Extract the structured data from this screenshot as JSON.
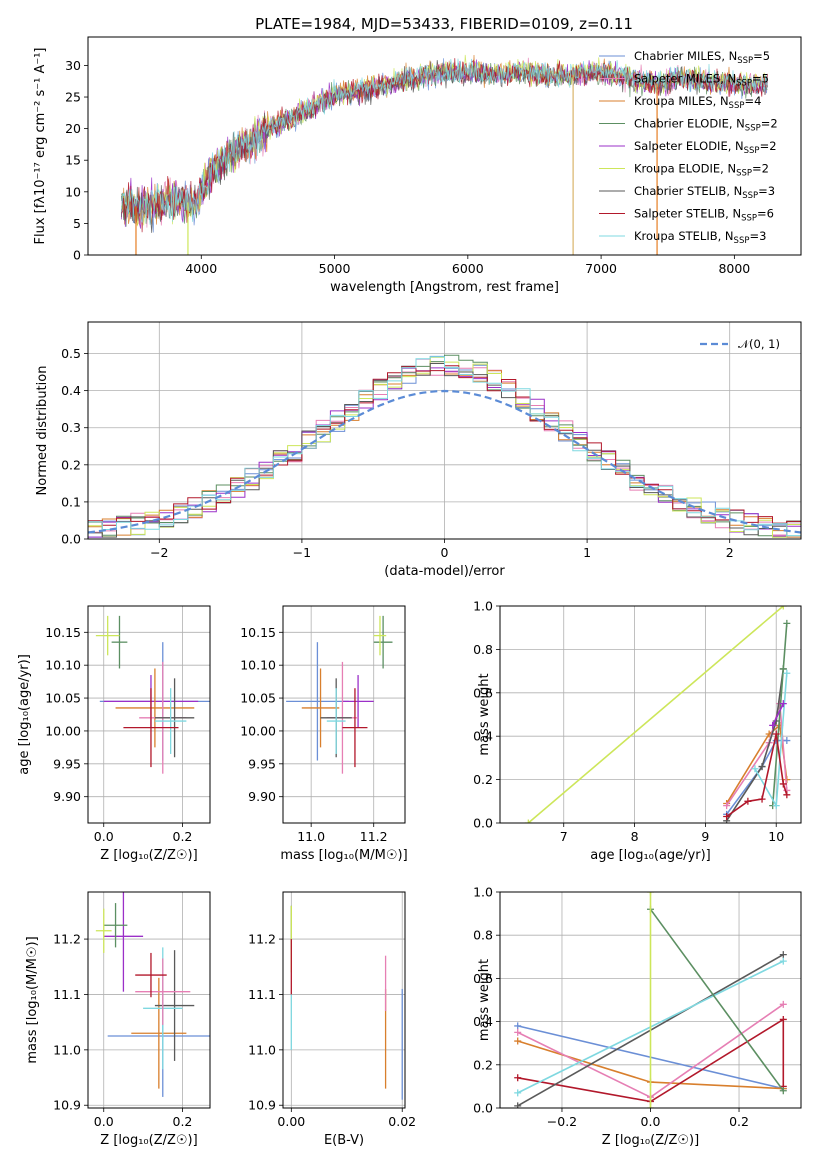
{
  "colors": {
    "c1": "#6b8fd6",
    "c2": "#e67e22",
    "c3": "#d87f2d",
    "c4": "#5c8f62",
    "c5": "#9b30c8",
    "c6": "#cde65a",
    "c7": "#5a5a5a",
    "c8": "#b2182b",
    "c9": "#7fd8e0",
    "pink": "#e67fb4"
  },
  "chart_data": [
    {
      "id": "spectrum",
      "type": "line",
      "title": "PLATE=1984, MJD=53433, FIBERID=0109, z=0.11",
      "xlabel": "wavelength [Angstrom, rest frame]",
      "ylabel": "Flux [fλ10⁻¹⁷ erg cm⁻² s⁻¹ A⁻¹]",
      "xlim": [
        3150,
        8500
      ],
      "ylim": [
        0,
        34.5
      ],
      "xticks": [
        4000,
        5000,
        6000,
        7000,
        8000
      ],
      "yticks": [
        0,
        5,
        10,
        15,
        20,
        25,
        30
      ],
      "legend_position": "top-right",
      "legend": [
        {
          "label": "Chabrier MILES, N",
          "sub": "SSP",
          "tail": "=5",
          "color": "#6b8fd6"
        },
        {
          "label": "Salpeter MILES, N",
          "sub": "SSP",
          "tail": "=5",
          "color": "#e67fb4"
        },
        {
          "label": "Kroupa MILES, N",
          "sub": "SSP",
          "tail": "=4",
          "color": "#d87f2d"
        },
        {
          "label": "Chabrier ELODIE, N",
          "sub": "SSP",
          "tail": "=2",
          "color": "#5c8f62"
        },
        {
          "label": "Salpeter ELODIE, N",
          "sub": "SSP",
          "tail": "=2",
          "color": "#9b30c8"
        },
        {
          "label": "Kroupa ELODIE, N",
          "sub": "SSP",
          "tail": "=2",
          "color": "#cde65a"
        },
        {
          "label": "Chabrier STELIB, N",
          "sub": "SSP",
          "tail": "=3",
          "color": "#5a5a5a"
        },
        {
          "label": "Salpeter STELIB, N",
          "sub": "SSP",
          "tail": "=6",
          "color": "#b2182b"
        },
        {
          "label": "Kroupa STELIB, N",
          "sub": "SSP",
          "tail": "=3",
          "color": "#7fd8e0"
        }
      ],
      "continuum": [
        [
          3400,
          8
        ],
        [
          3600,
          7.5
        ],
        [
          3800,
          9
        ],
        [
          3950,
          8
        ],
        [
          4100,
          14
        ],
        [
          4300,
          17
        ],
        [
          4500,
          20
        ],
        [
          4700,
          22
        ],
        [
          4900,
          24
        ],
        [
          5000,
          25.5
        ],
        [
          5200,
          26
        ],
        [
          5400,
          27
        ],
        [
          5600,
          28
        ],
        [
          5800,
          29
        ],
        [
          6000,
          29
        ],
        [
          6200,
          28.5
        ],
        [
          6400,
          29
        ],
        [
          6600,
          28.5
        ],
        [
          6800,
          28.5
        ],
        [
          7000,
          29
        ],
        [
          7200,
          28
        ],
        [
          7400,
          27
        ],
        [
          7600,
          28
        ],
        [
          7800,
          27.5
        ],
        [
          8000,
          27
        ],
        [
          8250,
          27
        ]
      ],
      "drops": [
        {
          "x": 3510,
          "color": "#e67e22"
        },
        {
          "x": 3900,
          "color": "#cde65a"
        },
        {
          "x": 6790,
          "color": "#d8b46a"
        },
        {
          "x": 7420,
          "color": "#e67e22"
        }
      ]
    },
    {
      "id": "residuals",
      "type": "histogram",
      "xlabel": "(data-model)/error",
      "ylabel": "Normed distribution",
      "xlim": [
        -2.5,
        2.5
      ],
      "ylim": [
        0,
        0.585
      ],
      "xticks": [
        -2,
        -1,
        0,
        1,
        2
      ],
      "yticks": [
        0.0,
        0.1,
        0.2,
        0.3,
        0.4,
        0.5
      ],
      "legend_position": "top-right",
      "legend_label": "𝒩(0, 1)",
      "bin_width": 0.1,
      "reference_curve": "gaussian N(0,1)",
      "series_colors": [
        "#6b8fd6",
        "#e67fb4",
        "#d87f2d",
        "#5c8f62",
        "#9b30c8",
        "#cde65a",
        "#5a5a5a",
        "#b2182b",
        "#7fd8e0"
      ]
    },
    {
      "id": "age_vs_Z",
      "type": "errorbar",
      "xlabel": "Z [log₁₀(Z/Z☉)]",
      "ylabel": "age  [log₁₀(age/yr)]",
      "xlim": [
        -0.04,
        0.27
      ],
      "ylim": [
        9.86,
        10.19
      ],
      "xticks": [
        0.0,
        0.2
      ],
      "yticks": [
        9.9,
        9.95,
        10.0,
        10.05,
        10.1,
        10.15
      ],
      "points": [
        {
          "x": 0.15,
          "y": 10.045,
          "xerr": 0.16,
          "yerr": 0.09,
          "color": "#6b8fd6"
        },
        {
          "x": 0.12,
          "y": 10.045,
          "xerr": 0.12,
          "yerr": 0.04,
          "color": "#9b30c8"
        },
        {
          "x": 0.13,
          "y": 10.035,
          "xerr": 0.1,
          "yerr": 0.06,
          "color": "#d87f2d"
        },
        {
          "x": 0.15,
          "y": 10.02,
          "xerr": 0.06,
          "yerr": 0.085,
          "color": "#e67fb4"
        },
        {
          "x": 0.18,
          "y": 10.02,
          "xerr": 0.05,
          "yerr": 0.06,
          "color": "#5a5a5a"
        },
        {
          "x": 0.17,
          "y": 10.015,
          "xerr": 0.04,
          "yerr": 0.05,
          "color": "#7fd8e0"
        },
        {
          "x": 0.12,
          "y": 10.005,
          "xerr": 0.07,
          "yerr": 0.06,
          "color": "#b2182b"
        },
        {
          "x": 0.04,
          "y": 10.135,
          "xerr": 0.02,
          "yerr": 0.04,
          "color": "#5c8f62"
        },
        {
          "x": 0.01,
          "y": 10.145,
          "xerr": 0.03,
          "yerr": 0.03,
          "color": "#cde65a"
        }
      ]
    },
    {
      "id": "age_vs_mass",
      "type": "errorbar",
      "xlabel": "mass [log₁₀(M/M☉)]",
      "ylabel": "",
      "xlim": [
        10.91,
        11.3
      ],
      "ylim": [
        9.86,
        10.19
      ],
      "xticks": [
        11.0,
        11.2
      ],
      "yticks": [
        9.9,
        9.95,
        10.0,
        10.05,
        10.1,
        10.15
      ],
      "points": [
        {
          "x": 11.02,
          "y": 10.045,
          "xerr": 0.1,
          "yerr": 0.09,
          "color": "#6b8fd6"
        },
        {
          "x": 11.15,
          "y": 10.045,
          "xerr": 0.05,
          "yerr": 0.04,
          "color": "#9b30c8"
        },
        {
          "x": 11.03,
          "y": 10.035,
          "xerr": 0.06,
          "yerr": 0.06,
          "color": "#d87f2d"
        },
        {
          "x": 11.1,
          "y": 10.02,
          "xerr": 0.05,
          "yerr": 0.085,
          "color": "#e67fb4"
        },
        {
          "x": 11.08,
          "y": 10.02,
          "xerr": 0.05,
          "yerr": 0.06,
          "color": "#5a5a5a"
        },
        {
          "x": 11.08,
          "y": 10.015,
          "xerr": 0.03,
          "yerr": 0.05,
          "color": "#7fd8e0"
        },
        {
          "x": 11.14,
          "y": 10.005,
          "xerr": 0.04,
          "yerr": 0.06,
          "color": "#b2182b"
        },
        {
          "x": 11.23,
          "y": 10.135,
          "xerr": 0.03,
          "yerr": 0.04,
          "color": "#5c8f62"
        },
        {
          "x": 11.22,
          "y": 10.145,
          "xerr": 0.02,
          "yerr": 0.03,
          "color": "#cde65a"
        }
      ]
    },
    {
      "id": "massweight_vs_age",
      "type": "line",
      "xlabel": "age  [log₁₀(age/yr)]",
      "ylabel": "mass weight",
      "xlim": [
        6.1,
        10.35
      ],
      "ylim": [
        0,
        1.0
      ],
      "xticks": [
        7,
        8,
        9,
        10
      ],
      "yticks": [
        0.0,
        0.2,
        0.4,
        0.6,
        0.8,
        1.0
      ],
      "series": [
        {
          "color": "#cde65a",
          "x": [
            6.5,
            10.1
          ],
          "y": [
            0.0,
            1.0
          ]
        },
        {
          "color": "#6b8fd6",
          "x": [
            9.3,
            9.8,
            10.0,
            10.15
          ],
          "y": [
            0.04,
            0.26,
            0.38,
            0.38
          ]
        },
        {
          "color": "#d87f2d",
          "x": [
            9.3,
            9.9,
            10.05,
            10.15
          ],
          "y": [
            0.09,
            0.41,
            0.45,
            0.2
          ]
        },
        {
          "color": "#e67fb4",
          "x": [
            9.3,
            9.9,
            10.05,
            10.15
          ],
          "y": [
            0.08,
            0.37,
            0.55,
            0.15
          ]
        },
        {
          "color": "#5a5a5a",
          "x": [
            9.3,
            9.8,
            10.0,
            10.1
          ],
          "y": [
            0.01,
            0.26,
            0.47,
            0.71
          ]
        },
        {
          "color": "#5c8f62",
          "x": [
            9.95,
            10.1,
            10.15
          ],
          "y": [
            0.08,
            0.71,
            0.92
          ]
        },
        {
          "color": "#7fd8e0",
          "x": [
            9.7,
            10.0,
            10.15
          ],
          "y": [
            0.25,
            0.08,
            0.69
          ]
        },
        {
          "color": "#9b30c8",
          "x": [
            9.95,
            10.1
          ],
          "y": [
            0.45,
            0.55
          ]
        },
        {
          "color": "#b2182b",
          "x": [
            9.3,
            9.6,
            9.8,
            10.0,
            10.1,
            10.15
          ],
          "y": [
            0.03,
            0.1,
            0.11,
            0.41,
            0.18,
            0.13
          ]
        }
      ]
    },
    {
      "id": "mass_vs_Z",
      "type": "errorbar",
      "xlabel": "Z [log₁₀(Z/Z☉)]",
      "ylabel": "mass [log₁₀(M/M☉)]",
      "xlim": [
        -0.04,
        0.27
      ],
      "ylim": [
        10.895,
        11.285
      ],
      "xticks": [
        0.0,
        0.2
      ],
      "yticks": [
        10.9,
        11.0,
        11.1,
        11.2
      ],
      "points": [
        {
          "x": 0.15,
          "y": 11.025,
          "xerr": 0.14,
          "yerr": 0.11,
          "color": "#6b8fd6"
        },
        {
          "x": 0.05,
          "y": 11.205,
          "xerr": 0.05,
          "yerr": 0.1,
          "color": "#9b30c8"
        },
        {
          "x": 0.14,
          "y": 11.03,
          "xerr": 0.07,
          "yerr": 0.1,
          "color": "#d87f2d"
        },
        {
          "x": 0.18,
          "y": 11.08,
          "xerr": 0.05,
          "yerr": 0.1,
          "color": "#5a5a5a"
        },
        {
          "x": 0.15,
          "y": 11.075,
          "xerr": 0.05,
          "yerr": 0.11,
          "color": "#7fd8e0"
        },
        {
          "x": 0.15,
          "y": 11.105,
          "xerr": 0.07,
          "yerr": 0.06,
          "color": "#e67fb4"
        },
        {
          "x": 0.12,
          "y": 11.135,
          "xerr": 0.04,
          "yerr": 0.04,
          "color": "#b2182b"
        },
        {
          "x": 0.03,
          "y": 11.225,
          "xerr": 0.03,
          "yerr": 0.04,
          "color": "#5c8f62"
        },
        {
          "x": 0.0,
          "y": 11.215,
          "xerr": 0.02,
          "yerr": 0.04,
          "color": "#cde65a"
        }
      ]
    },
    {
      "id": "mass_vs_EBV",
      "type": "errorbar",
      "xlabel": "E(B-V)",
      "ylabel": "",
      "xlim": [
        -0.0015,
        0.0205
      ],
      "ylim": [
        10.895,
        11.285
      ],
      "xticks": [
        0.0,
        0.02
      ],
      "yticks": [
        10.9,
        11.0,
        11.1,
        11.2
      ],
      "points": [
        {
          "x": 0.0,
          "y": 11.22,
          "xerr": 0,
          "yerr": 0.04,
          "color": "#5c8f62"
        },
        {
          "x": 0.0,
          "y": 11.2,
          "xerr": 0,
          "yerr": 0.06,
          "color": "#cde65a"
        },
        {
          "x": 0.0,
          "y": 11.15,
          "xerr": 0,
          "yerr": 0.05,
          "color": "#b2182b"
        },
        {
          "x": 0.0,
          "y": 11.05,
          "xerr": 0,
          "yerr": 0.05,
          "color": "#7fd8e0"
        },
        {
          "x": 0.017,
          "y": 11.02,
          "xerr": 0,
          "yerr": 0.09,
          "color": "#d87f2d"
        },
        {
          "x": 0.017,
          "y": 11.12,
          "xerr": 0,
          "yerr": 0.05,
          "color": "#e67fb4"
        },
        {
          "x": 0.02,
          "y": 11.01,
          "xerr": 0,
          "yerr": 0.1,
          "color": "#6b8fd6"
        }
      ]
    },
    {
      "id": "massweight_vs_Z",
      "type": "line",
      "xlabel": "Z [log₁₀(Z/Z☉)]",
      "ylabel": "mass weight",
      "xlim": [
        -0.34,
        0.34
      ],
      "ylim": [
        0,
        1.0
      ],
      "xticks": [
        -0.2,
        0.0,
        0.2
      ],
      "yticks": [
        0.0,
        0.2,
        0.4,
        0.6,
        0.8,
        1.0
      ],
      "series": [
        {
          "color": "#6b8fd6",
          "x": [
            -0.3,
            0.3
          ],
          "y": [
            0.38,
            0.09
          ]
        },
        {
          "color": "#d87f2d",
          "x": [
            -0.3,
            0.0,
            0.3
          ],
          "y": [
            0.31,
            0.12,
            0.09
          ]
        },
        {
          "color": "#e67fb4",
          "x": [
            -0.3,
            0.0,
            0.3
          ],
          "y": [
            0.35,
            0.05,
            0.48
          ]
        },
        {
          "color": "#b2182b",
          "x": [
            -0.3,
            0.0,
            0.3,
            0.3
          ],
          "y": [
            0.14,
            0.03,
            0.41,
            0.1
          ]
        },
        {
          "color": "#5a5a5a",
          "x": [
            -0.3,
            0.3
          ],
          "y": [
            0.01,
            0.71
          ]
        },
        {
          "color": "#7fd8e0",
          "x": [
            -0.3,
            0.3
          ],
          "y": [
            0.07,
            0.68
          ]
        },
        {
          "color": "#5c8f62",
          "x": [
            0.0,
            0.3
          ],
          "y": [
            0.92,
            0.08
          ]
        },
        {
          "color": "#cde65a",
          "x": [
            0.0,
            0.0
          ],
          "y": [
            0.0,
            1.0
          ]
        }
      ]
    }
  ]
}
